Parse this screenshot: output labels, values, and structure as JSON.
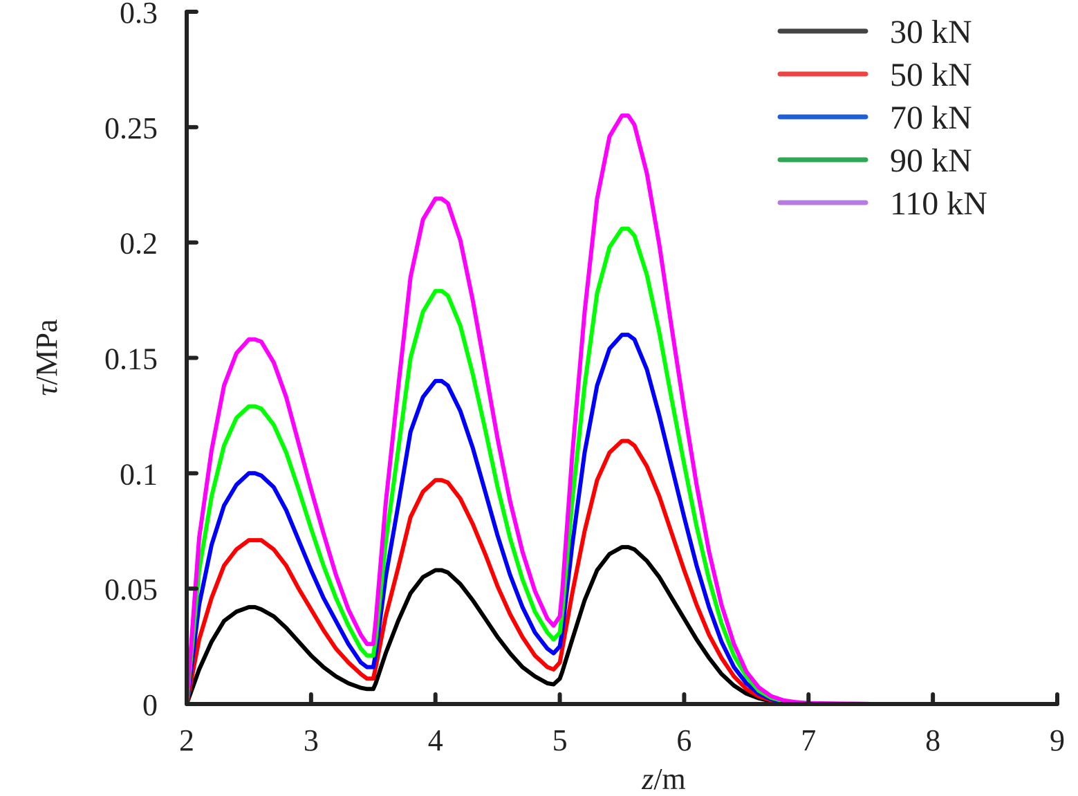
{
  "chart_data": {
    "type": "line",
    "xlabel": {
      "var": "z",
      "unit": "/m"
    },
    "ylabel": {
      "var": "τ",
      "unit": "/MPa"
    },
    "xlim": [
      2,
      9
    ],
    "ylim": [
      0,
      0.3
    ],
    "xticks": [
      "2",
      "3",
      "4",
      "5",
      "6",
      "7",
      "8",
      "9"
    ],
    "yticks": [
      "0",
      "0.05",
      "0.1",
      "0.15",
      "0.2",
      "0.25",
      "0.3"
    ],
    "grid": false,
    "legend_position": "top-right",
    "x": [
      2.0,
      2.1,
      2.2,
      2.3,
      2.4,
      2.5,
      2.55,
      2.6,
      2.7,
      2.8,
      2.9,
      3.0,
      3.1,
      3.2,
      3.3,
      3.4,
      3.45,
      3.5,
      3.52,
      3.6,
      3.7,
      3.8,
      3.9,
      4.0,
      4.05,
      4.1,
      4.2,
      4.3,
      4.4,
      4.5,
      4.6,
      4.7,
      4.8,
      4.9,
      4.95,
      5.0,
      5.02,
      5.1,
      5.2,
      5.3,
      5.4,
      5.5,
      5.55,
      5.6,
      5.7,
      5.8,
      5.9,
      6.0,
      6.1,
      6.2,
      6.3,
      6.4,
      6.5,
      6.6,
      6.7,
      6.8,
      6.9,
      7.0,
      7.2,
      7.5,
      8.0,
      8.5
    ],
    "series": [
      {
        "name": "30 kN",
        "color": "#000000",
        "legend_color": "#444444",
        "values": [
          0.0,
          0.015,
          0.027,
          0.036,
          0.04,
          0.042,
          0.042,
          0.041,
          0.038,
          0.033,
          0.027,
          0.021,
          0.016,
          0.012,
          0.009,
          0.007,
          0.0065,
          0.0065,
          0.009,
          0.022,
          0.036,
          0.048,
          0.055,
          0.058,
          0.058,
          0.057,
          0.052,
          0.045,
          0.037,
          0.029,
          0.022,
          0.016,
          0.012,
          0.009,
          0.0085,
          0.011,
          0.014,
          0.028,
          0.045,
          0.058,
          0.065,
          0.068,
          0.068,
          0.067,
          0.062,
          0.055,
          0.046,
          0.037,
          0.028,
          0.02,
          0.013,
          0.008,
          0.0045,
          0.0025,
          0.0012,
          0.0006,
          0.0003,
          0.0002,
          0.0001,
          0.0,
          0.0,
          0.0
        ]
      },
      {
        "name": "50 kN",
        "color": "#ff0000",
        "legend_color": "#ee4444",
        "values": [
          0.0,
          0.028,
          0.046,
          0.06,
          0.067,
          0.071,
          0.071,
          0.071,
          0.067,
          0.06,
          0.05,
          0.041,
          0.032,
          0.024,
          0.018,
          0.013,
          0.011,
          0.011,
          0.016,
          0.038,
          0.059,
          0.081,
          0.092,
          0.097,
          0.097,
          0.096,
          0.089,
          0.078,
          0.065,
          0.051,
          0.039,
          0.029,
          0.021,
          0.016,
          0.015,
          0.018,
          0.024,
          0.048,
          0.075,
          0.097,
          0.109,
          0.114,
          0.114,
          0.112,
          0.103,
          0.09,
          0.074,
          0.058,
          0.043,
          0.03,
          0.02,
          0.012,
          0.0065,
          0.0033,
          0.0016,
          0.0008,
          0.0004,
          0.0002,
          0.0001,
          0.0,
          0.0,
          0.0
        ]
      },
      {
        "name": "70 kN",
        "color": "#0000ff",
        "legend_color": "#1f5fd6",
        "values": [
          0.0,
          0.043,
          0.069,
          0.086,
          0.095,
          0.1,
          0.1,
          0.099,
          0.094,
          0.084,
          0.071,
          0.058,
          0.046,
          0.036,
          0.026,
          0.018,
          0.016,
          0.016,
          0.022,
          0.055,
          0.086,
          0.118,
          0.133,
          0.14,
          0.14,
          0.138,
          0.127,
          0.111,
          0.092,
          0.073,
          0.056,
          0.042,
          0.031,
          0.024,
          0.022,
          0.025,
          0.032,
          0.069,
          0.109,
          0.138,
          0.154,
          0.16,
          0.16,
          0.158,
          0.145,
          0.125,
          0.103,
          0.081,
          0.06,
          0.042,
          0.027,
          0.016,
          0.009,
          0.0045,
          0.0021,
          0.001,
          0.0005,
          0.0002,
          0.0001,
          0.0,
          0.0,
          0.0
        ]
      },
      {
        "name": "90 kN",
        "color": "#00ff00",
        "legend_color": "#2ea854",
        "values": [
          0.0,
          0.058,
          0.09,
          0.112,
          0.124,
          0.129,
          0.129,
          0.128,
          0.121,
          0.109,
          0.093,
          0.076,
          0.06,
          0.046,
          0.034,
          0.024,
          0.021,
          0.021,
          0.028,
          0.07,
          0.11,
          0.15,
          0.17,
          0.179,
          0.179,
          0.177,
          0.164,
          0.143,
          0.119,
          0.094,
          0.072,
          0.054,
          0.04,
          0.031,
          0.028,
          0.031,
          0.04,
          0.088,
          0.138,
          0.178,
          0.198,
          0.206,
          0.206,
          0.203,
          0.186,
          0.161,
          0.132,
          0.104,
          0.077,
          0.054,
          0.035,
          0.021,
          0.012,
          0.0058,
          0.0027,
          0.0013,
          0.0006,
          0.0003,
          0.0001,
          0.0,
          0.0,
          0.0
        ]
      },
      {
        "name": "110 kN",
        "color": "#ff00ff",
        "legend_color": "#b57be0",
        "values": [
          0.0,
          0.072,
          0.11,
          0.138,
          0.152,
          0.158,
          0.158,
          0.157,
          0.148,
          0.133,
          0.113,
          0.093,
          0.074,
          0.056,
          0.041,
          0.03,
          0.026,
          0.026,
          0.036,
          0.087,
          0.137,
          0.185,
          0.21,
          0.219,
          0.219,
          0.217,
          0.201,
          0.175,
          0.145,
          0.115,
          0.088,
          0.066,
          0.049,
          0.037,
          0.034,
          0.038,
          0.049,
          0.108,
          0.17,
          0.219,
          0.246,
          0.255,
          0.255,
          0.251,
          0.23,
          0.199,
          0.163,
          0.128,
          0.095,
          0.066,
          0.043,
          0.026,
          0.014,
          0.0072,
          0.0034,
          0.0016,
          0.0008,
          0.0004,
          0.0002,
          0.0,
          0.0,
          0.0
        ]
      }
    ]
  }
}
